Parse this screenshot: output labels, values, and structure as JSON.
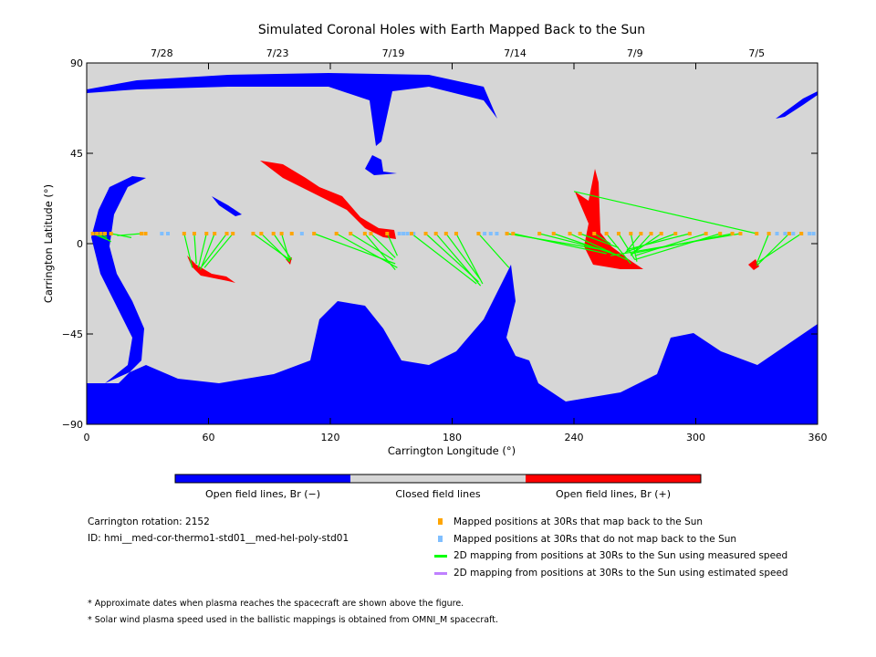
{
  "chart_data": {
    "type": "scatter",
    "title": "Simulated Coronal Holes with Earth Mapped Back to the Sun",
    "xlabel": "Carrington Longitude (°)",
    "ylabel": "Carrington Latitude (°)",
    "xlim": [
      0,
      360
    ],
    "ylim": [
      -90,
      90
    ],
    "xticks": [
      "0",
      "60",
      "120",
      "180",
      "240",
      "300",
      "360"
    ],
    "yticks": [
      "90",
      "45",
      "0",
      "−45",
      "−90"
    ],
    "date_ticks": [
      {
        "lon": 37,
        "label": "7/28"
      },
      {
        "lon": 94,
        "label": "7/23"
      },
      {
        "lon": 151,
        "label": "7/19"
      },
      {
        "lon": 211,
        "label": "7/14"
      },
      {
        "lon": 270,
        "label": "7/9"
      },
      {
        "lon": 330,
        "label": "7/5"
      }
    ],
    "mapped_back_lon": [
      3,
      5,
      7,
      9,
      12,
      27,
      29,
      48,
      53,
      59,
      63,
      69,
      72,
      82,
      86,
      92,
      96,
      101,
      112,
      123,
      130,
      137,
      140,
      148,
      160,
      167,
      172,
      177,
      182,
      193,
      207,
      210,
      223,
      230,
      238,
      243,
      250,
      256,
      262,
      268,
      273,
      278,
      283,
      290,
      297,
      305,
      312,
      318,
      322,
      330,
      336,
      346,
      352
    ],
    "not_mapped_lon": [
      37,
      40,
      106,
      154,
      156,
      158,
      161,
      196,
      199,
      202,
      207,
      336,
      340,
      344,
      348,
      352,
      356,
      358
    ],
    "points_lat": 5,
    "measured_mappings": [
      [
        3,
        5,
        10,
        2
      ],
      [
        5,
        5,
        12,
        1
      ],
      [
        7,
        5,
        10,
        3
      ],
      [
        12,
        5,
        22,
        3
      ],
      [
        27,
        5,
        15,
        4
      ],
      [
        48,
        5,
        52,
        -12
      ],
      [
        53,
        5,
        54,
        -10
      ],
      [
        59,
        5,
        55,
        -12
      ],
      [
        63,
        5,
        56,
        -13
      ],
      [
        69,
        5,
        57,
        -11
      ],
      [
        72,
        5,
        58,
        -12
      ],
      [
        82,
        5,
        100,
        -8
      ],
      [
        86,
        5,
        100,
        -9
      ],
      [
        92,
        5,
        101,
        -8
      ],
      [
        96,
        5,
        100,
        -9
      ],
      [
        112,
        5,
        152,
        -10
      ],
      [
        123,
        5,
        153,
        -12
      ],
      [
        130,
        5,
        151,
        -8
      ],
      [
        137,
        5,
        152,
        -13
      ],
      [
        140,
        5,
        152,
        -7
      ],
      [
        148,
        5,
        153,
        -6
      ],
      [
        160,
        5,
        192,
        -20
      ],
      [
        167,
        5,
        193,
        -19
      ],
      [
        172,
        5,
        194,
        -21
      ],
      [
        177,
        5,
        194,
        -18
      ],
      [
        182,
        5,
        195,
        -20
      ],
      [
        193,
        5,
        208,
        -12
      ],
      [
        207,
        5,
        254,
        -3
      ],
      [
        210,
        5,
        256,
        -5
      ],
      [
        223,
        5,
        258,
        -4
      ],
      [
        230,
        5,
        262,
        -6
      ],
      [
        238,
        5,
        266,
        -8
      ],
      [
        243,
        5,
        262,
        -2
      ],
      [
        250,
        5,
        258,
        0
      ],
      [
        256,
        5,
        268,
        -10
      ],
      [
        262,
        5,
        270,
        -8
      ],
      [
        268,
        5,
        271,
        -9
      ],
      [
        273,
        5,
        265,
        -5
      ],
      [
        278,
        5,
        268,
        -6
      ],
      [
        283,
        5,
        270,
        -4
      ],
      [
        290,
        5,
        266,
        -4
      ],
      [
        297,
        5,
        266,
        -3
      ],
      [
        305,
        5,
        270,
        -6
      ],
      [
        312,
        5,
        270,
        -8
      ],
      [
        318,
        5,
        268,
        -5
      ],
      [
        322,
        5,
        258,
        -6
      ],
      [
        330,
        5,
        240,
        26
      ],
      [
        336,
        5,
        330,
        -10
      ],
      [
        346,
        5,
        330,
        -11
      ],
      [
        352,
        5,
        331,
        -9
      ]
    ],
    "estimated_mappings": []
  },
  "colorbar": {
    "labels": [
      "Open field lines, Br (−)",
      "Closed field lines",
      "Open field lines, Br (+)"
    ],
    "colors": [
      "#0000ff",
      "#d6d6d6",
      "#ff0000"
    ]
  },
  "info": {
    "rotation": "Carrington rotation: 2152",
    "id": "ID: hmi__med-cor-thermo1-std01__med-hel-poly-std01"
  },
  "legend": [
    {
      "label": "Mapped positions at 30Rs that map back to the Sun",
      "color": "#ffa500",
      "kind": "square"
    },
    {
      "label": "Mapped positions at 30Rs that do not map back to the Sun",
      "color": "#80bfff",
      "kind": "square"
    },
    {
      "label": "2D mapping from positions at 30Rs to the Sun using measured speed",
      "color": "#00ff00",
      "kind": "line"
    },
    {
      "label": "2D mapping from positions at 30Rs to the Sun using estimated speed",
      "color": "#bf80ff",
      "kind": "line"
    }
  ],
  "notes": [
    "* Approximate dates when plasma reaches the spacecraft are shown above the figure.",
    "* Solar wind plasma speed used in the ballistic mappings is obtained from OMNI_M spacecraft."
  ]
}
